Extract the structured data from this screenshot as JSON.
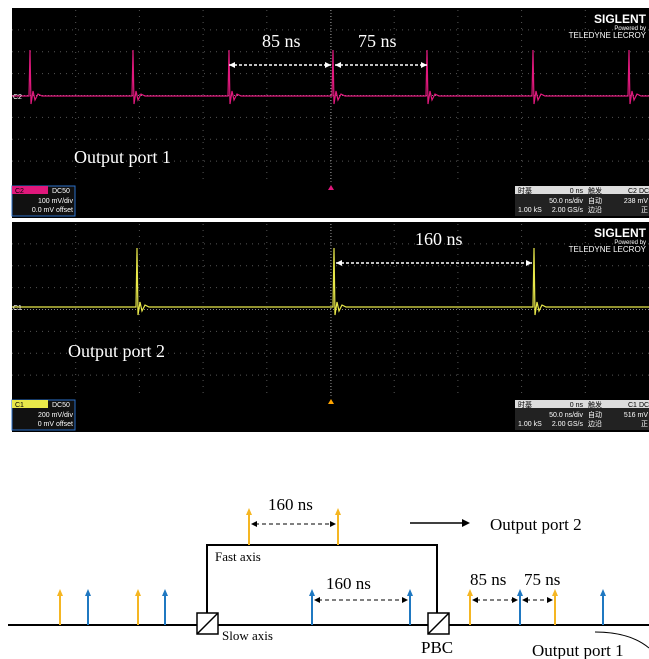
{
  "scope1": {
    "brand": "SIGLENT",
    "powered": "Powered by",
    "vendor": "TELEDYNE LECROY",
    "label": "Output port 1",
    "annotations": [
      "85 ns",
      "75 ns"
    ],
    "channel": "C2",
    "coupling": "DC50",
    "scale": "100 mV/div",
    "offset": "0.0 mV offset",
    "marker": "C2",
    "readout": {
      "timebase_title": "时基",
      "delay": "0 ns",
      "timediv": "50.0 ns/div",
      "samples": "1.00 kS",
      "rate": "2.00 GS/s",
      "trigger_title": "触发",
      "trig_ch": "C2",
      "trig_cpl": "DC",
      "mode": "自动",
      "level": "238 mV",
      "type": "边沿",
      "slope": "正"
    }
  },
  "scope2": {
    "brand": "SIGLENT",
    "powered": "Powered by",
    "vendor": "TELEDYNE LECROY",
    "label": "Output port 2",
    "annotations": [
      "160 ns"
    ],
    "channel": "C1",
    "coupling": "DC50",
    "scale": "200 mV/div",
    "offset": "0 mV offset",
    "marker": "C1",
    "readout": {
      "timebase_title": "时基",
      "delay": "0 ns",
      "timediv": "50.0 ns/div",
      "samples": "1.00 kS",
      "rate": "2.00 GS/s",
      "trigger_title": "触发",
      "trig_ch": "C1",
      "trig_cpl": "DC",
      "mode": "自动",
      "level": "516 mV",
      "type": "边沿",
      "slope": "正"
    }
  },
  "diagram": {
    "top_delay": "160 ns",
    "output2": "Output port 2",
    "fast_axis": "Fast axis",
    "inner_delay": "160 ns",
    "out_delay_a": "85 ns",
    "out_delay_b": "75 ns",
    "slow_axis": "Slow axis",
    "pbc": "PBC",
    "output1": "Output port 1"
  }
}
